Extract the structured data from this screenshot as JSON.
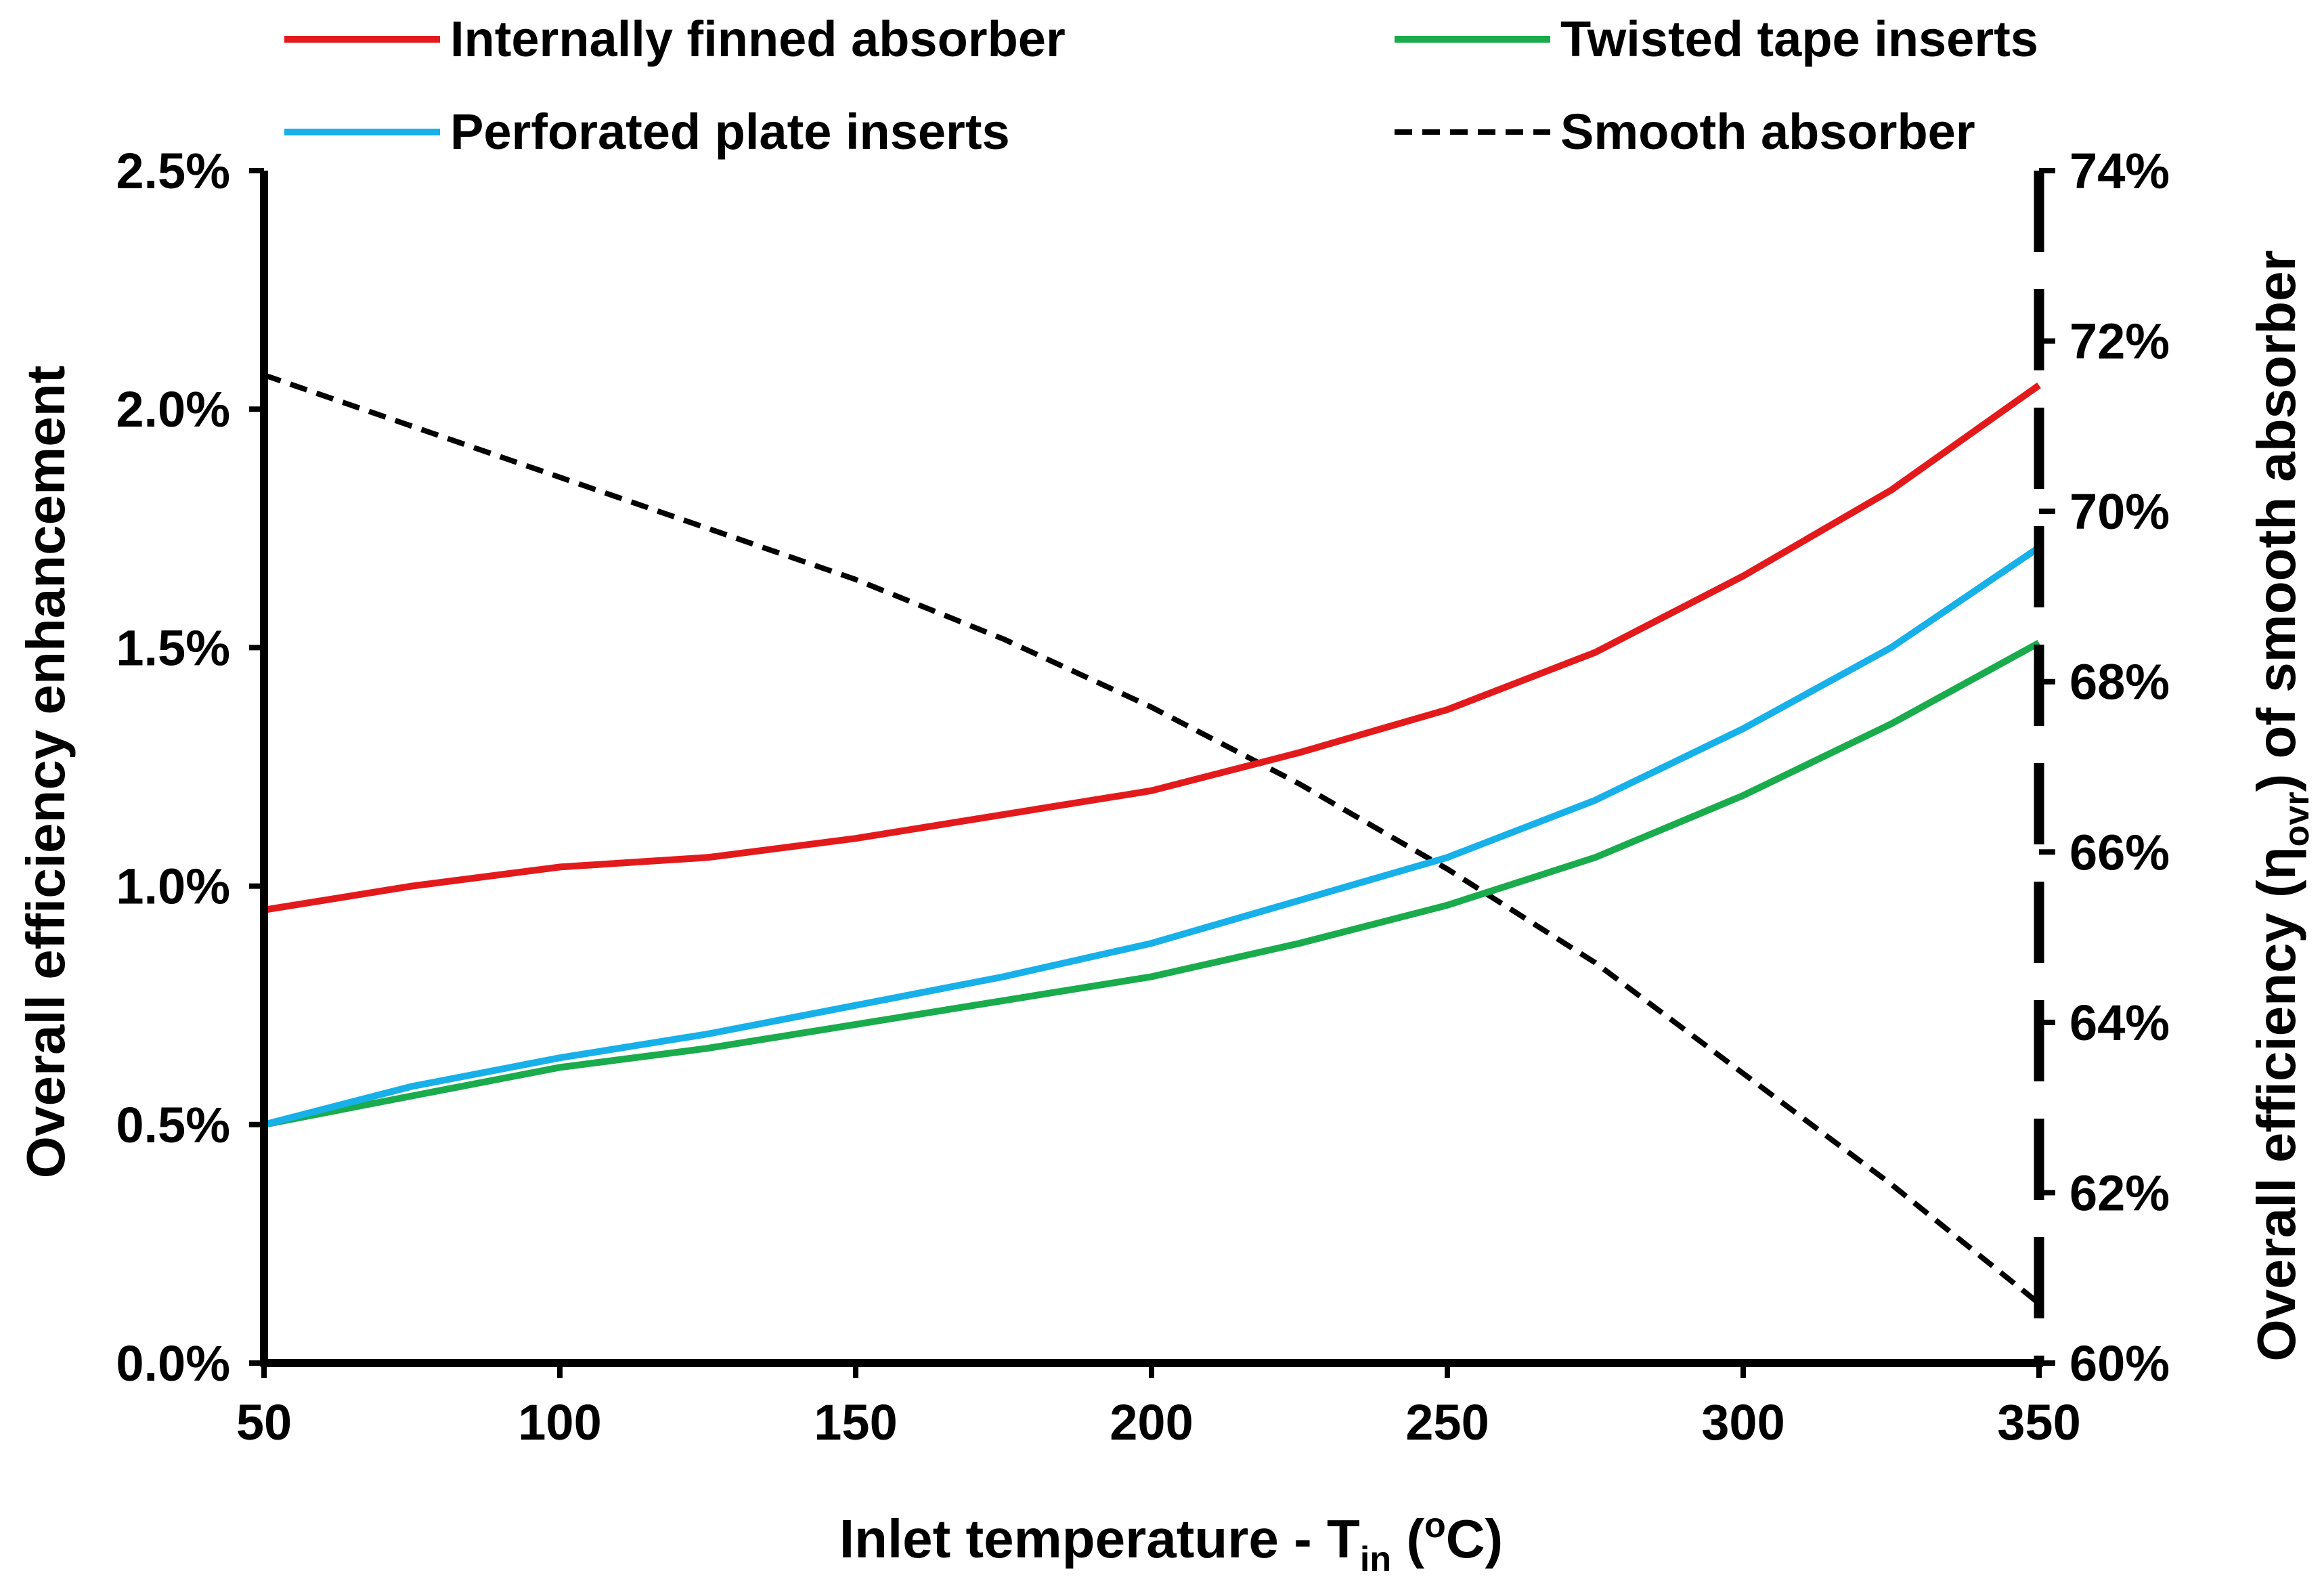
{
  "chart_data": {
    "type": "line",
    "x": [
      50,
      75,
      100,
      125,
      150,
      175,
      200,
      225,
      250,
      275,
      300,
      325,
      350
    ],
    "xlim": [
      50,
      350
    ],
    "xticks": [
      "50",
      "100",
      "150",
      "200",
      "250",
      "300",
      "350"
    ],
    "xtick_values": [
      50,
      100,
      150,
      200,
      250,
      300,
      350
    ],
    "xlabel": {
      "main": "Inlet temperature - T",
      "sub": "in",
      "open": " (",
      "sup": "o",
      "close": "C)"
    },
    "ylabel_left": "Overall efficiency enhancement",
    "ylabel_right": {
      "main": "Overall efficiency (η",
      "sub": "ovr",
      "close": ") of smooth absorber"
    },
    "ylim_left": [
      0,
      2.5
    ],
    "ylim_right": [
      60,
      74
    ],
    "yticks_left": [
      "0.0%",
      "0.5%",
      "1.0%",
      "1.5%",
      "2.0%",
      "2.5%"
    ],
    "yticks_left_values": [
      0,
      0.5,
      1.0,
      1.5,
      2.0,
      2.5
    ],
    "yticks_right": [
      "60%",
      "62%",
      "64%",
      "66%",
      "68%",
      "70%",
      "72%",
      "74%"
    ],
    "yticks_right_values": [
      60,
      62,
      64,
      66,
      68,
      70,
      72,
      74
    ],
    "grid": false,
    "legend_position": "top",
    "series": [
      {
        "name": "Internally finned absorber",
        "color": "#e31a1c",
        "axis": "left",
        "dash": false,
        "values": [
          0.95,
          1.0,
          1.04,
          1.06,
          1.1,
          1.15,
          1.2,
          1.28,
          1.37,
          1.49,
          1.65,
          1.83,
          2.05
        ]
      },
      {
        "name": "Twisted tape inserts",
        "color": "#1aab4c",
        "axis": "left",
        "dash": false,
        "values": [
          0.5,
          0.56,
          0.62,
          0.66,
          0.71,
          0.76,
          0.81,
          0.88,
          0.96,
          1.06,
          1.19,
          1.34,
          1.51
        ]
      },
      {
        "name": "Perforated plate inserts",
        "color": "#17b0e8",
        "axis": "left",
        "dash": false,
        "values": [
          0.5,
          0.58,
          0.64,
          0.69,
          0.75,
          0.81,
          0.88,
          0.97,
          1.06,
          1.18,
          1.33,
          1.5,
          1.71
        ]
      },
      {
        "name": "Smooth absorber",
        "color": "#000000",
        "axis": "right",
        "dash": true,
        "values": [
          71.6,
          71.0,
          70.4,
          69.8,
          69.2,
          68.5,
          67.7,
          66.8,
          65.8,
          64.7,
          63.4,
          62.1,
          60.7
        ]
      }
    ]
  }
}
